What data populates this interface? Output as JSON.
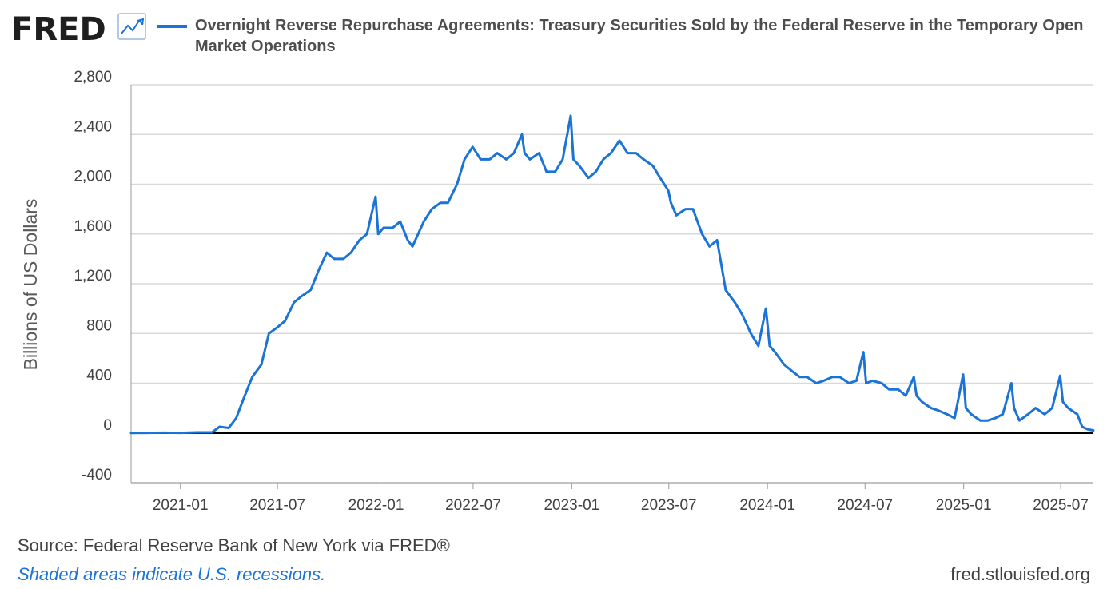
{
  "header": {
    "logo_text": "FRED",
    "logo_icon": "line-chart-icon",
    "series_title_line1": "Overnight Reverse Repurchase Agreements: Treasury Securities Sold by the Federal Reserve in the Temporary Open",
    "series_title_line2": "Market Operations"
  },
  "colors": {
    "series": "#1a73d6",
    "grid": "#d9d9d9",
    "axis": "#999999",
    "zero_line": "#000000",
    "background": "#ffffff"
  },
  "chart_data": {
    "type": "line",
    "title": "Overnight Reverse Repurchase Agreements: Treasury Securities Sold by the Federal Reserve in the Temporary Open Market Operations",
    "xlabel": "",
    "ylabel": "Billions of US Dollars",
    "ylim": [
      -400,
      2800
    ],
    "xlim": [
      "2020-10-01",
      "2025-08-31"
    ],
    "yticks": [
      -400,
      0,
      400,
      800,
      1200,
      1600,
      2000,
      2400,
      2800
    ],
    "ytick_labels": [
      "-400",
      "0",
      "400",
      "800",
      "1,200",
      "1,600",
      "2,000",
      "2,400",
      "2,800"
    ],
    "xticks": [
      "2021-01",
      "2021-07",
      "2022-01",
      "2022-07",
      "2023-01",
      "2023-07",
      "2024-01",
      "2024-07",
      "2025-01",
      "2025-07"
    ],
    "grid": true,
    "legend": "top-left",
    "series": [
      {
        "name": "Overnight Reverse Repurchase Agreements: Treasury Securities Sold by the Federal Reserve in the Temporary Open Market Operations",
        "points": [
          [
            "2020-10-01",
            0
          ],
          [
            "2020-11-01",
            1
          ],
          [
            "2020-12-01",
            2
          ],
          [
            "2021-01-01",
            1
          ],
          [
            "2021-02-01",
            5
          ],
          [
            "2021-03-01",
            5
          ],
          [
            "2021-03-15",
            50
          ],
          [
            "2021-04-01",
            40
          ],
          [
            "2021-04-15",
            120
          ],
          [
            "2021-05-01",
            300
          ],
          [
            "2021-05-15",
            450
          ],
          [
            "2021-06-01",
            550
          ],
          [
            "2021-06-15",
            800
          ],
          [
            "2021-07-01",
            850
          ],
          [
            "2021-07-15",
            900
          ],
          [
            "2021-08-01",
            1050
          ],
          [
            "2021-08-15",
            1100
          ],
          [
            "2021-09-01",
            1150
          ],
          [
            "2021-09-15",
            1300
          ],
          [
            "2021-10-01",
            1450
          ],
          [
            "2021-10-15",
            1400
          ],
          [
            "2021-11-01",
            1400
          ],
          [
            "2021-11-15",
            1450
          ],
          [
            "2021-12-01",
            1550
          ],
          [
            "2021-12-15",
            1600
          ],
          [
            "2021-12-31",
            1900
          ],
          [
            "2022-01-05",
            1600
          ],
          [
            "2022-01-15",
            1650
          ],
          [
            "2022-02-01",
            1650
          ],
          [
            "2022-02-15",
            1700
          ],
          [
            "2022-03-01",
            1550
          ],
          [
            "2022-03-10",
            1500
          ],
          [
            "2022-03-31",
            1700
          ],
          [
            "2022-04-15",
            1800
          ],
          [
            "2022-05-01",
            1850
          ],
          [
            "2022-05-15",
            1850
          ],
          [
            "2022-06-01",
            2000
          ],
          [
            "2022-06-15",
            2200
          ],
          [
            "2022-06-30",
            2300
          ],
          [
            "2022-07-15",
            2200
          ],
          [
            "2022-08-01",
            2200
          ],
          [
            "2022-08-15",
            2250
          ],
          [
            "2022-09-01",
            2200
          ],
          [
            "2022-09-15",
            2250
          ],
          [
            "2022-09-30",
            2400
          ],
          [
            "2022-10-05",
            2250
          ],
          [
            "2022-10-15",
            2200
          ],
          [
            "2022-11-01",
            2250
          ],
          [
            "2022-11-15",
            2100
          ],
          [
            "2022-12-01",
            2100
          ],
          [
            "2022-12-15",
            2200
          ],
          [
            "2022-12-30",
            2550
          ],
          [
            "2023-01-04",
            2200
          ],
          [
            "2023-01-15",
            2150
          ],
          [
            "2023-02-01",
            2050
          ],
          [
            "2023-02-15",
            2100
          ],
          [
            "2023-03-01",
            2200
          ],
          [
            "2023-03-15",
            2250
          ],
          [
            "2023-03-31",
            2350
          ],
          [
            "2023-04-15",
            2250
          ],
          [
            "2023-05-01",
            2250
          ],
          [
            "2023-05-15",
            2200
          ],
          [
            "2023-06-01",
            2150
          ],
          [
            "2023-06-15",
            2050
          ],
          [
            "2023-06-30",
            1950
          ],
          [
            "2023-07-05",
            1850
          ],
          [
            "2023-07-15",
            1750
          ],
          [
            "2023-08-01",
            1800
          ],
          [
            "2023-08-15",
            1800
          ],
          [
            "2023-09-01",
            1600
          ],
          [
            "2023-09-15",
            1500
          ],
          [
            "2023-09-29",
            1550
          ],
          [
            "2023-10-05",
            1400
          ],
          [
            "2023-10-15",
            1150
          ],
          [
            "2023-11-01",
            1050
          ],
          [
            "2023-11-15",
            950
          ],
          [
            "2023-12-01",
            800
          ],
          [
            "2023-12-15",
            700
          ],
          [
            "2023-12-29",
            1000
          ],
          [
            "2024-01-05",
            700
          ],
          [
            "2024-01-15",
            650
          ],
          [
            "2024-02-01",
            550
          ],
          [
            "2024-02-15",
            500
          ],
          [
            "2024-03-01",
            450
          ],
          [
            "2024-03-15",
            450
          ],
          [
            "2024-04-01",
            400
          ],
          [
            "2024-04-15",
            420
          ],
          [
            "2024-05-01",
            450
          ],
          [
            "2024-05-15",
            450
          ],
          [
            "2024-06-01",
            400
          ],
          [
            "2024-06-15",
            420
          ],
          [
            "2024-06-28",
            650
          ],
          [
            "2024-07-03",
            400
          ],
          [
            "2024-07-15",
            420
          ],
          [
            "2024-08-01",
            400
          ],
          [
            "2024-08-15",
            350
          ],
          [
            "2024-09-01",
            350
          ],
          [
            "2024-09-15",
            300
          ],
          [
            "2024-09-30",
            450
          ],
          [
            "2024-10-05",
            300
          ],
          [
            "2024-10-15",
            250
          ],
          [
            "2024-11-01",
            200
          ],
          [
            "2024-11-15",
            180
          ],
          [
            "2024-12-01",
            150
          ],
          [
            "2024-12-15",
            120
          ],
          [
            "2024-12-31",
            470
          ],
          [
            "2025-01-05",
            200
          ],
          [
            "2025-01-15",
            150
          ],
          [
            "2025-02-01",
            100
          ],
          [
            "2025-02-15",
            100
          ],
          [
            "2025-03-01",
            120
          ],
          [
            "2025-03-15",
            150
          ],
          [
            "2025-03-31",
            400
          ],
          [
            "2025-04-05",
            200
          ],
          [
            "2025-04-15",
            100
          ],
          [
            "2025-05-01",
            150
          ],
          [
            "2025-05-15",
            200
          ],
          [
            "2025-06-01",
            150
          ],
          [
            "2025-06-15",
            200
          ],
          [
            "2025-06-30",
            460
          ],
          [
            "2025-07-05",
            250
          ],
          [
            "2025-07-15",
            200
          ],
          [
            "2025-08-01",
            150
          ],
          [
            "2025-08-10",
            50
          ],
          [
            "2025-08-20",
            30
          ],
          [
            "2025-08-31",
            20
          ]
        ]
      }
    ]
  },
  "footer": {
    "source": "Source: Federal Reserve Bank of New York via FRED®",
    "note": "Shaded areas indicate U.S. recessions.",
    "url": "fred.stlouisfed.org"
  }
}
